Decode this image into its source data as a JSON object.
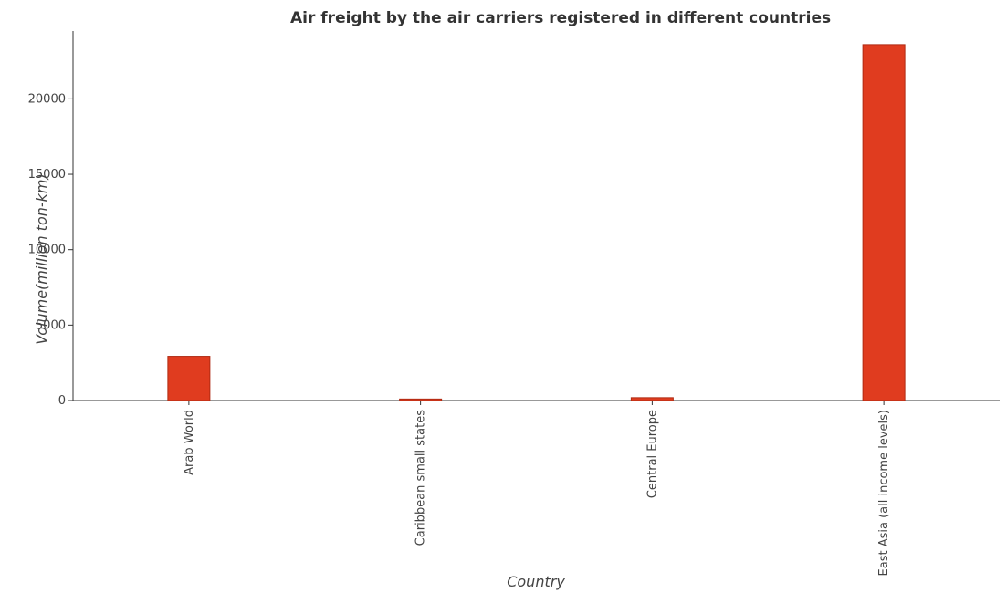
{
  "chart_data": {
    "type": "bar",
    "title": "Air freight by the air carriers registered in different countries",
    "xlabel": "Country",
    "ylabel": "Volume(million ton-km)",
    "categories": [
      "Arab World",
      "Caribbean small states",
      "Central Europe",
      "East Asia (all income levels)"
    ],
    "values": [
      2930,
      100,
      190,
      23600
    ],
    "ylim": [
      0,
      24500
    ],
    "yticks": [
      0,
      5000,
      10000,
      15000,
      20000
    ],
    "grid": false,
    "colors": {
      "bar": "#e03c1f",
      "bar_edge": "#b02a12"
    }
  }
}
